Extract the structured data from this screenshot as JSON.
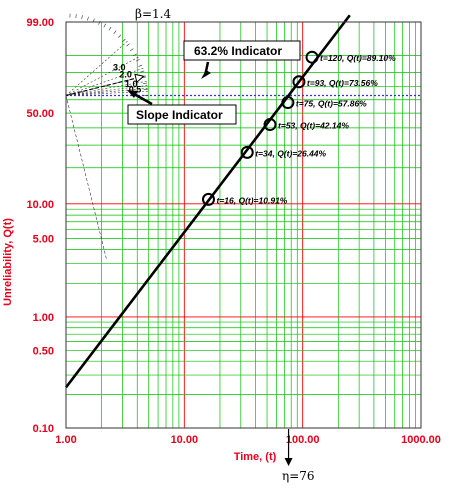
{
  "chart_data": {
    "type": "scatter",
    "title": "",
    "xlabel": "Time, (t)",
    "ylabel": "Unreliability, Q(t)",
    "x_scale": "log",
    "y_scale": "weibull",
    "xlim": [
      1,
      1000
    ],
    "ylim": [
      0.1,
      99.0
    ],
    "x_ticks": [
      "1.00",
      "10.00",
      "100.00",
      "1000.00"
    ],
    "y_ticks": [
      {
        "value": 99.0,
        "label": "99.00"
      },
      {
        "value": 50.0,
        "label": "50.00"
      },
      {
        "value": 10.0,
        "label": "10.00"
      },
      {
        "value": 5.0,
        "label": "5.00"
      },
      {
        "value": 1.0,
        "label": "1.00"
      },
      {
        "value": 0.5,
        "label": "0.50"
      },
      {
        "value": 0.1,
        "label": "0.10"
      }
    ],
    "grid": true,
    "fit_line": {
      "beta": 1.4,
      "eta": 76
    },
    "points": [
      {
        "t": 16,
        "q": 10.91,
        "label": "t=16, Q(t)=10.91%"
      },
      {
        "t": 34,
        "q": 26.44,
        "label": "t=34, Q(t)=26.44%"
      },
      {
        "t": 53,
        "q": 42.14,
        "label": "t=53, Q(t)=42.14%"
      },
      {
        "t": 75,
        "q": 57.86,
        "label": "t=75, Q(t)=57.86%"
      },
      {
        "t": 93,
        "q": 73.56,
        "label": "t=93, Q(t)=73.56%"
      },
      {
        "t": 120,
        "q": 89.1,
        "label": "t=120, Q(t)=89.10%"
      }
    ],
    "beta_label": "β=1.4",
    "eta_label": "η=76",
    "slope_fan": [
      "3.0",
      "2.0",
      "1.0",
      "0.5"
    ],
    "indicator_632_label": "63.2% Indicator",
    "slope_indicator_label": "Slope Indicator",
    "colors": {
      "axis_text": "#e8001c",
      "grid_green": "#00c000",
      "grid_red": "#ff0000",
      "line": "#000000",
      "indicator": "#3333cc"
    }
  }
}
